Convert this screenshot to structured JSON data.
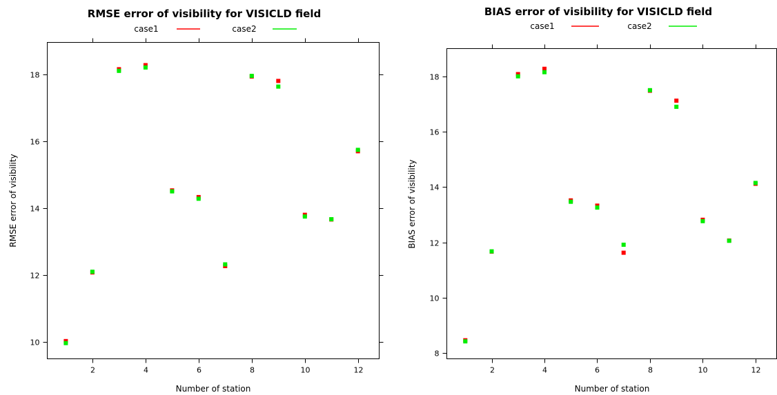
{
  "chart_data": [
    {
      "type": "scatter",
      "title": "RMSE error of visibility for VISICLD field",
      "xlabel": "Number of station",
      "ylabel": "RMSE error of visibility",
      "xlim": [
        0.3,
        12.8
      ],
      "ylim": [
        9.5,
        18.95
      ],
      "xticks": [
        2,
        4,
        6,
        8,
        10,
        12
      ],
      "yticks": [
        10,
        12,
        14,
        16,
        18
      ],
      "legend_position": "top",
      "x": [
        1,
        2,
        3,
        4,
        5,
        6,
        7,
        8,
        9,
        10,
        11,
        12
      ],
      "series": [
        {
          "name": "case1",
          "color": "#ff0000",
          "values": [
            10.03,
            12.08,
            18.15,
            18.27,
            14.53,
            14.33,
            12.27,
            17.93,
            17.8,
            13.8,
            13.66,
            15.7
          ]
        },
        {
          "name": "case2",
          "color": "#00ee00",
          "values": [
            9.97,
            12.1,
            18.1,
            18.2,
            14.5,
            14.28,
            12.32,
            17.95,
            17.63,
            13.75,
            13.67,
            15.74
          ]
        }
      ]
    },
    {
      "type": "scatter",
      "title": "BIAS error of visibility for VISICLD field",
      "xlabel": "Number of station",
      "ylabel": "BIAS error of visibility",
      "xlim": [
        0.3,
        12.8
      ],
      "ylim": [
        7.8,
        19.0
      ],
      "xticks": [
        2,
        4,
        6,
        8,
        10,
        12
      ],
      "yticks": [
        8,
        10,
        12,
        14,
        16,
        18
      ],
      "legend_position": "top",
      "x": [
        1,
        2,
        3,
        4,
        5,
        6,
        7,
        8,
        9,
        10,
        11,
        12
      ],
      "series": [
        {
          "name": "case1",
          "color": "#ff0000",
          "values": [
            8.47,
            11.67,
            18.08,
            18.27,
            13.52,
            13.33,
            11.63,
            17.48,
            17.12,
            12.82,
            12.07,
            14.12
          ]
        },
        {
          "name": "case2",
          "color": "#00ee00",
          "values": [
            8.43,
            11.68,
            18.0,
            18.15,
            13.47,
            13.26,
            11.92,
            17.5,
            16.9,
            12.77,
            12.06,
            14.15
          ]
        }
      ]
    }
  ]
}
